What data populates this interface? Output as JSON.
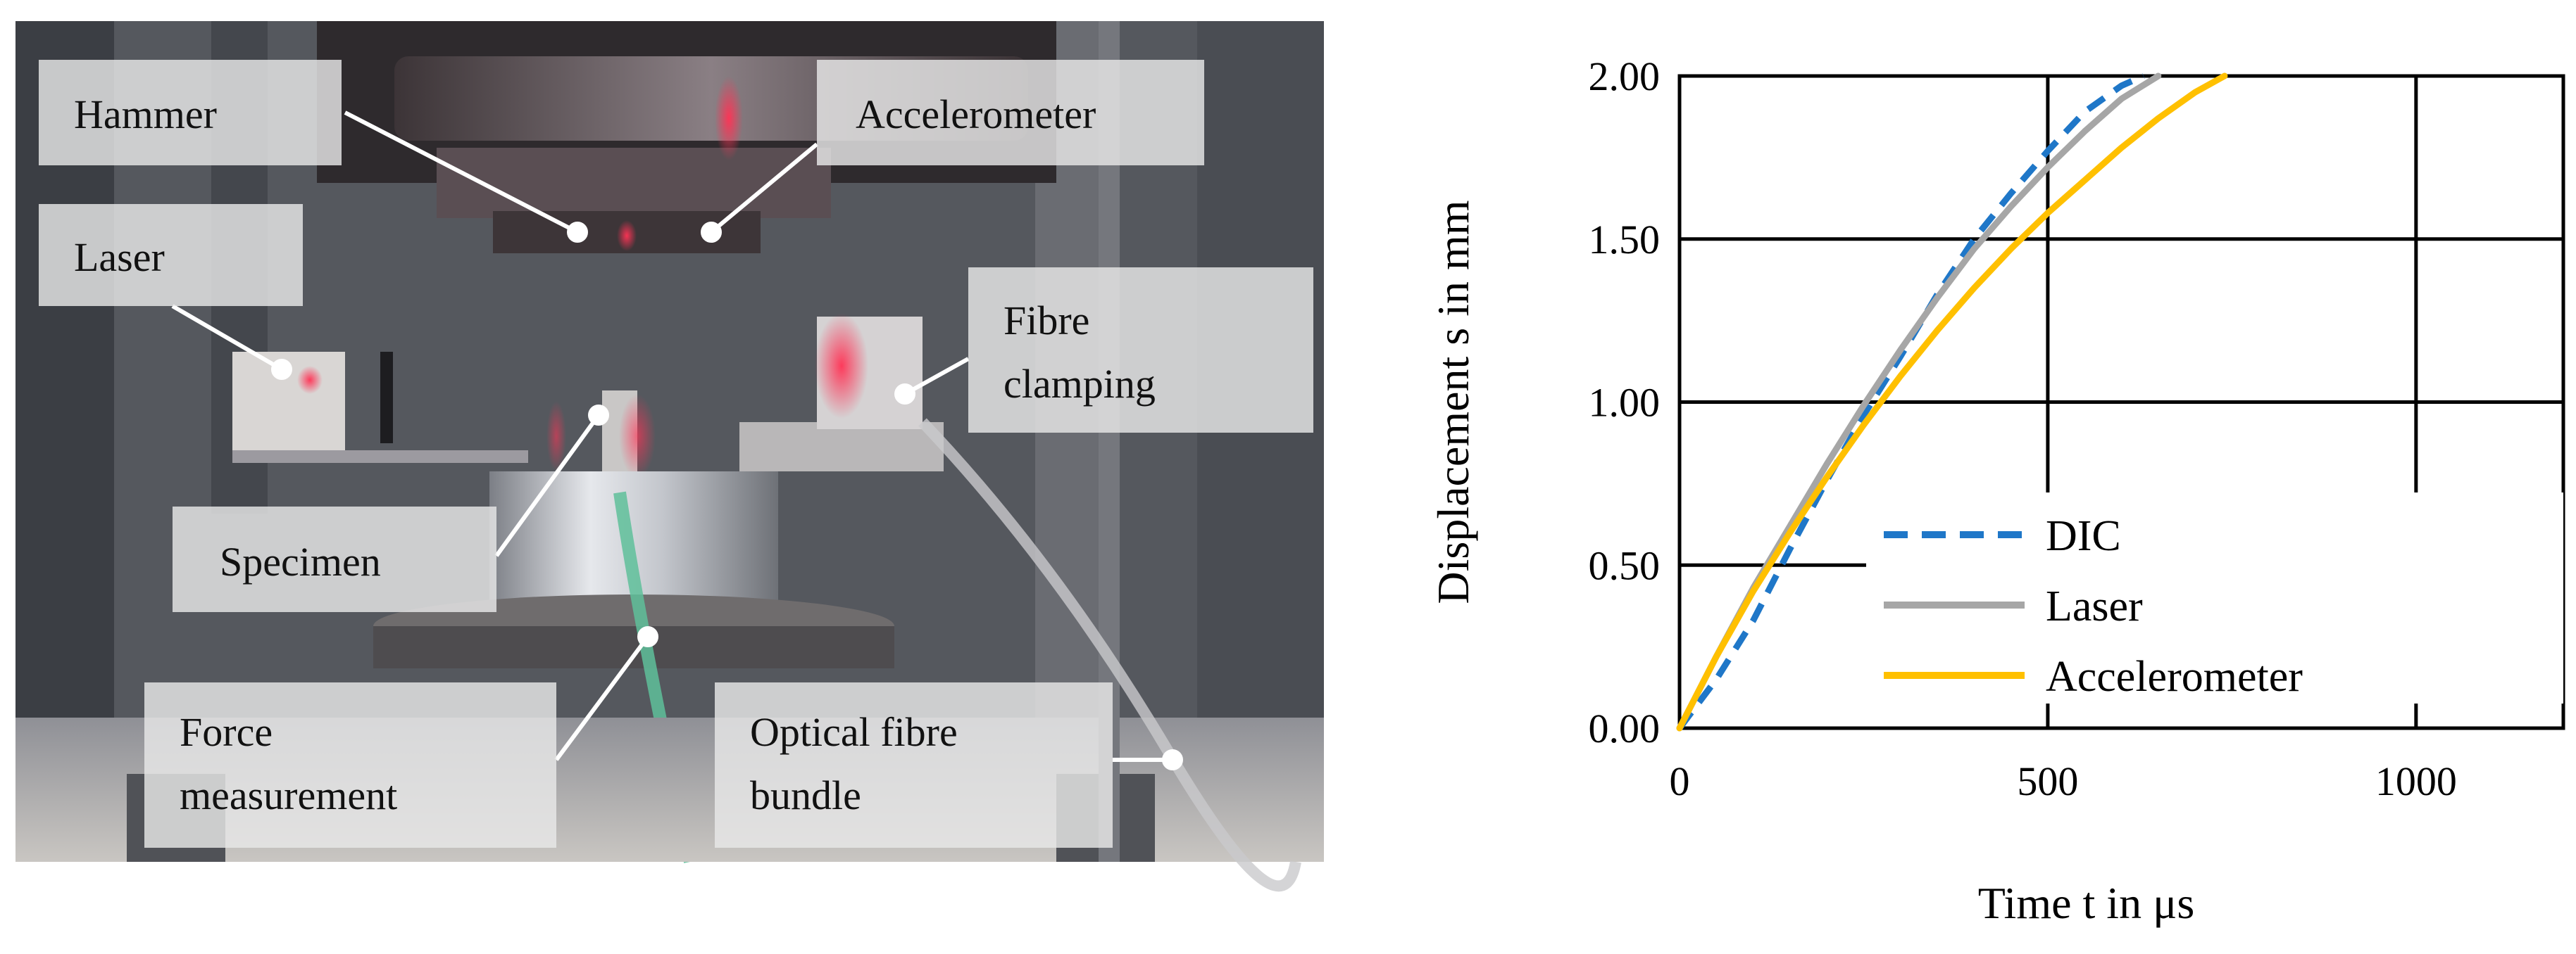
{
  "photo": {
    "callouts": [
      {
        "id": "hammer",
        "lines": [
          "Hammer"
        ]
      },
      {
        "id": "accelerometer",
        "lines": [
          "Accelerometer"
        ]
      },
      {
        "id": "laser",
        "lines": [
          "Laser"
        ]
      },
      {
        "id": "fibre-clamping",
        "lines": [
          "Fibre",
          "clamping"
        ]
      },
      {
        "id": "specimen",
        "lines": [
          "Specimen"
        ]
      },
      {
        "id": "force-measurement",
        "lines": [
          "Force",
          "measurement"
        ]
      },
      {
        "id": "optical-fibre-bundle",
        "lines": [
          "Optical fibre",
          "bundle"
        ]
      }
    ]
  },
  "chart_data": {
    "type": "line",
    "xlabel": "Time t in μs",
    "ylabel": "Displacement s in mm",
    "xlim": [
      0,
      1200
    ],
    "ylim": [
      0,
      2.0
    ],
    "xticks": [
      "0",
      "500",
      "1000"
    ],
    "yticks": [
      "0.00",
      "0.50",
      "1.00",
      "1.50",
      "2.00"
    ],
    "grid": true,
    "legend_position": "bottom-right",
    "series": [
      {
        "name": "DIC",
        "style": "dashed",
        "color": "#1f77c8",
        "x": [
          0,
          50,
          100,
          150,
          200,
          250,
          300,
          350,
          400,
          450,
          500,
          550,
          600,
          630
        ],
        "y": [
          0.0,
          0.15,
          0.33,
          0.55,
          0.76,
          0.96,
          1.14,
          1.33,
          1.5,
          1.64,
          1.77,
          1.89,
          1.97,
          2.0
        ]
      },
      {
        "name": "Laser",
        "style": "solid",
        "color": "#a6a6a6",
        "x": [
          0,
          50,
          100,
          150,
          200,
          250,
          300,
          350,
          400,
          450,
          500,
          550,
          600,
          650
        ],
        "y": [
          0.0,
          0.22,
          0.43,
          0.62,
          0.81,
          0.99,
          1.16,
          1.32,
          1.47,
          1.6,
          1.72,
          1.83,
          1.93,
          2.0
        ]
      },
      {
        "name": "Accelerometer",
        "style": "solid",
        "color": "#ffc000",
        "x": [
          0,
          50,
          100,
          150,
          200,
          250,
          300,
          350,
          400,
          450,
          500,
          550,
          600,
          650,
          700,
          740
        ],
        "y": [
          0.0,
          0.22,
          0.42,
          0.6,
          0.77,
          0.93,
          1.08,
          1.22,
          1.35,
          1.47,
          1.58,
          1.68,
          1.78,
          1.87,
          1.95,
          2.0
        ]
      }
    ]
  }
}
